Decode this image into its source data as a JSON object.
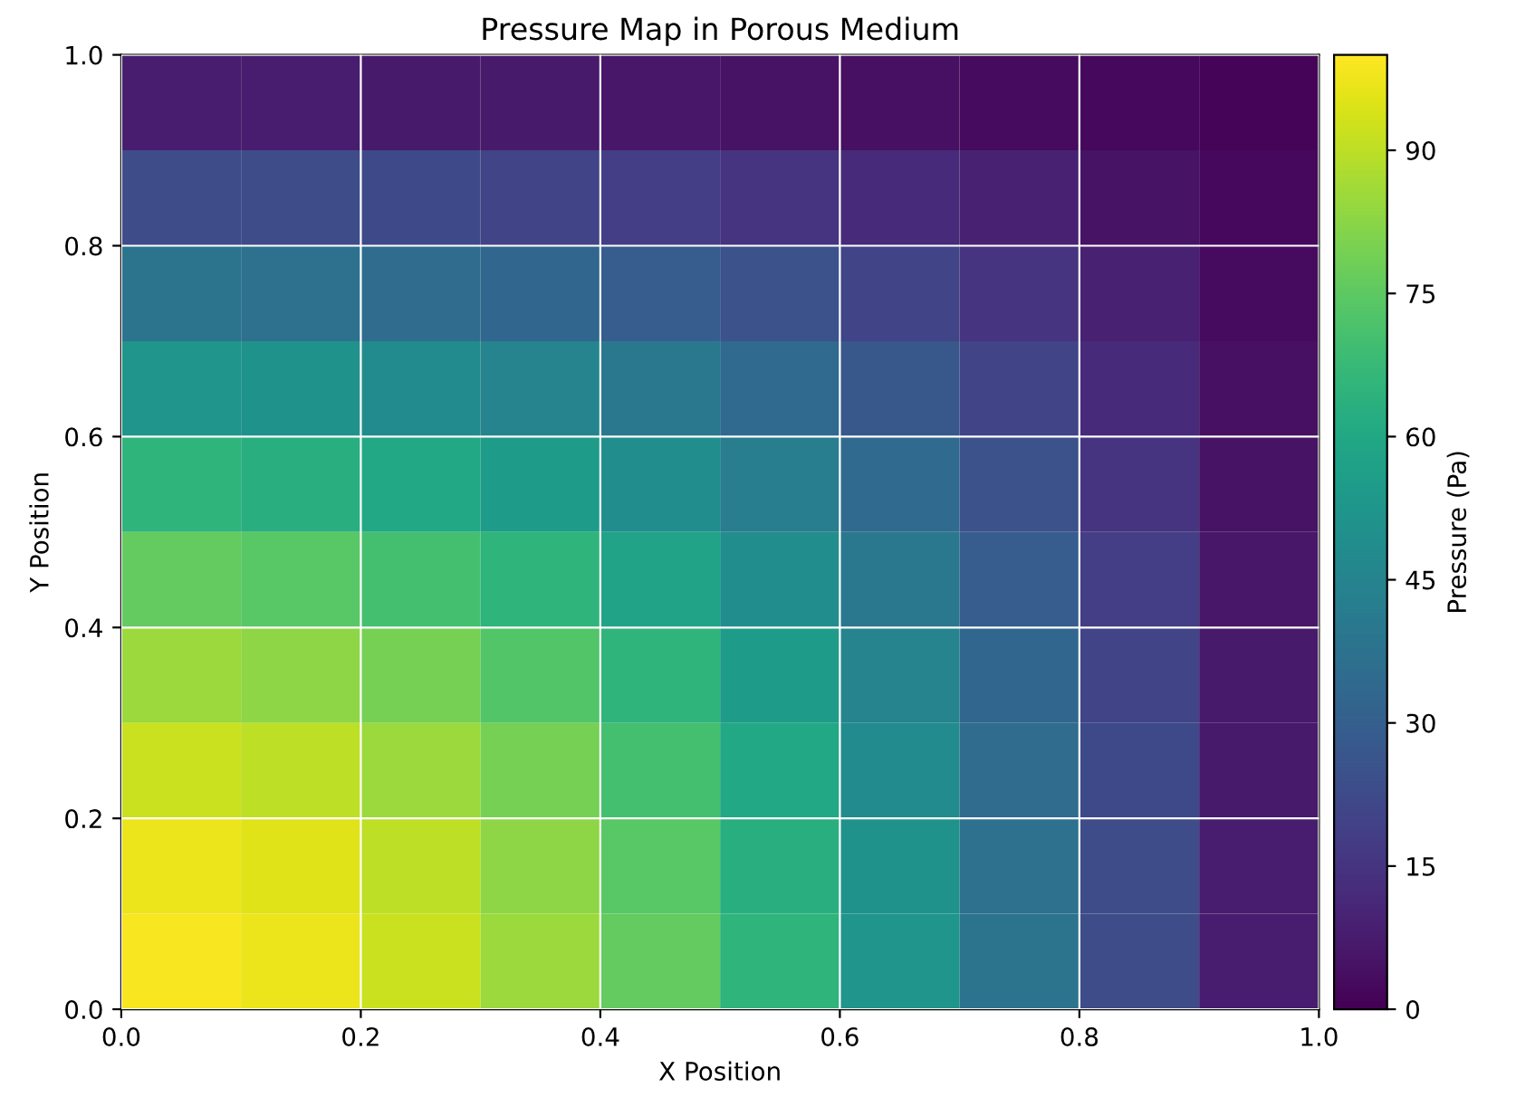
{
  "chart_data": {
    "type": "heatmap",
    "title": "Pressure Map in Porous Medium",
    "xlabel": "X Position",
    "ylabel": "Y Position",
    "clabel": "Pressure (Pa)",
    "x": [
      0.05,
      0.15,
      0.25,
      0.35,
      0.45,
      0.55,
      0.65,
      0.75,
      0.85,
      0.95
    ],
    "y": [
      0.95,
      0.85,
      0.75,
      0.65,
      0.55,
      0.45,
      0.35,
      0.25,
      0.15,
      0.05
    ],
    "xlim": [
      0.0,
      1.0
    ],
    "ylim": [
      0.0,
      1.0
    ],
    "xticks": [
      {
        "value": 0,
        "label": "0.0"
      },
      {
        "value": 0.2,
        "label": "0.2"
      },
      {
        "value": 0.4,
        "label": "0.4"
      },
      {
        "value": 0.6,
        "label": "0.6"
      },
      {
        "value": 0.8,
        "label": "0.8"
      },
      {
        "value": 1,
        "label": "1.0"
      }
    ],
    "yticks": [
      {
        "value": 0,
        "label": "0.0"
      },
      {
        "value": 0.2,
        "label": "0.2"
      },
      {
        "value": 0.4,
        "label": "0.4"
      },
      {
        "value": 0.6,
        "label": "0.6"
      },
      {
        "value": 0.8,
        "label": "0.8"
      },
      {
        "value": 1,
        "label": "1.0"
      }
    ],
    "clim": [
      0,
      100
    ],
    "cticks": [
      0,
      15,
      30,
      45,
      60,
      75,
      90
    ],
    "grid": true,
    "cells": [
      [
        8,
        8,
        7,
        7,
        6,
        5,
        4,
        3,
        2,
        1
      ],
      [
        23,
        23,
        22,
        20,
        18,
        15,
        12,
        9,
        5,
        2
      ],
      [
        38,
        37,
        35,
        33,
        29,
        25,
        20,
        15,
        9,
        3
      ],
      [
        52,
        51,
        48,
        45,
        40,
        34,
        27,
        20,
        12,
        4
      ],
      [
        65,
        63,
        60,
        55,
        49,
        42,
        34,
        25,
        15,
        5
      ],
      [
        76,
        74,
        70,
        65,
        58,
        49,
        40,
        29,
        18,
        6
      ],
      [
        85,
        83,
        79,
        73,
        65,
        55,
        45,
        33,
        20,
        7
      ],
      [
        92,
        90,
        85,
        79,
        70,
        60,
        48,
        35,
        22,
        7
      ],
      [
        97,
        95,
        90,
        83,
        74,
        63,
        51,
        37,
        23,
        8
      ],
      [
        99,
        97,
        92,
        85,
        76,
        65,
        52,
        38,
        23,
        8
      ]
    ]
  }
}
